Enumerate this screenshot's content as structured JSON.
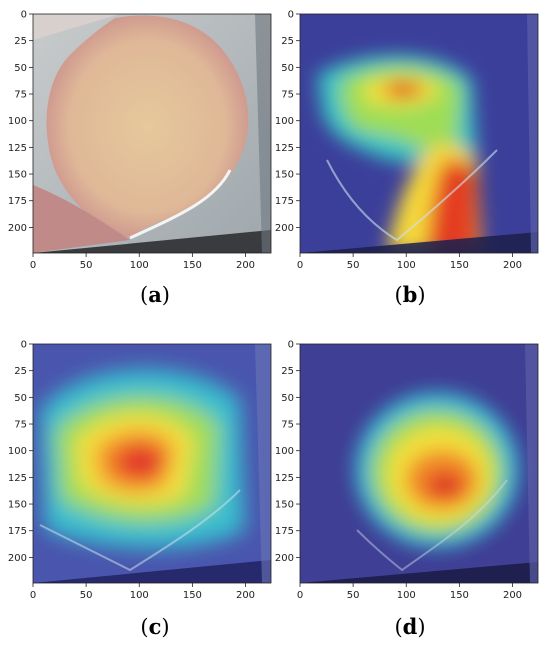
{
  "figure": {
    "panels": [
      {
        "id": "a",
        "caption_open": "(",
        "caption_letter": "a",
        "caption_close": ")",
        "image_kind": "photo",
        "x_ticks": [
          "0",
          "50",
          "100",
          "150",
          "200"
        ],
        "y_ticks": [
          "0",
          "25",
          "50",
          "75",
          "100",
          "125",
          "150",
          "175",
          "200"
        ]
      },
      {
        "id": "b",
        "caption_open": "(",
        "caption_letter": "b",
        "caption_close": ")",
        "image_kind": "heatmap-b",
        "x_ticks": [
          "0",
          "50",
          "100",
          "150",
          "200"
        ],
        "y_ticks": [
          "0",
          "25",
          "50",
          "75",
          "100",
          "125",
          "150",
          "175",
          "200"
        ]
      },
      {
        "id": "c",
        "caption_open": "(",
        "caption_letter": "c",
        "caption_close": ")",
        "image_kind": "heatmap-c",
        "x_ticks": [
          "0",
          "50",
          "100",
          "150",
          "200"
        ],
        "y_ticks": [
          "0",
          "25",
          "50",
          "75",
          "100",
          "125",
          "150",
          "175",
          "200"
        ]
      },
      {
        "id": "d",
        "caption_open": "(",
        "caption_letter": "d",
        "caption_close": ")",
        "image_kind": "heatmap-d",
        "x_ticks": [
          "0",
          "50",
          "100",
          "150",
          "200"
        ],
        "y_ticks": [
          "0",
          "25",
          "50",
          "75",
          "100",
          "125",
          "150",
          "175",
          "200"
        ]
      }
    ]
  }
}
